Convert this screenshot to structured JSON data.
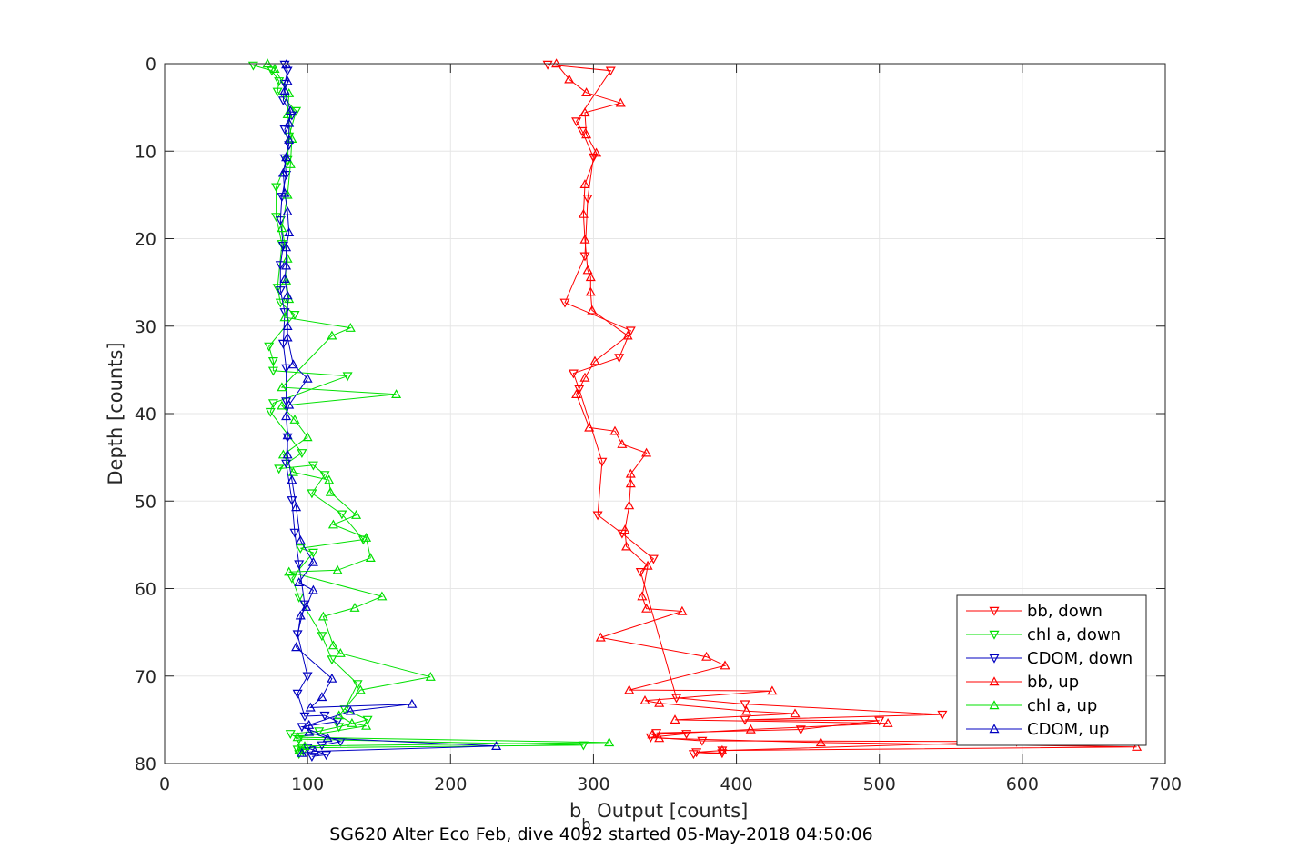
{
  "chart_data": {
    "type": "line",
    "xlabel_main": "b",
    "xlabel_sub": "b",
    "xlabel_rest": " Output [counts]",
    "ylabel": "Depth [counts]",
    "caption": "SG620 Alter Eco Feb, dive 4092 started 05-May-2018 04:50:06",
    "xlim": [
      0,
      700
    ],
    "ylim": [
      0,
      80
    ],
    "y_reversed": true,
    "x_ticks": [
      "0",
      "100",
      "200",
      "300",
      "400",
      "500",
      "600",
      "700"
    ],
    "y_ticks": [
      "0",
      "10",
      "20",
      "30",
      "40",
      "50",
      "60",
      "70",
      "80"
    ],
    "grid": true,
    "legend_position": "bottom-right",
    "series": [
      {
        "name": "bb, down",
        "color": "#ff0000",
        "marker": "triangle-down",
        "points": [
          [
            268,
            0.1
          ],
          [
            312,
            0.8
          ],
          [
            288,
            6.6
          ],
          [
            292,
            7.7
          ],
          [
            300,
            10.7
          ],
          [
            296,
            15.4
          ],
          [
            294,
            22.0
          ],
          [
            280,
            27.3
          ],
          [
            326,
            30.5
          ],
          [
            318,
            33.6
          ],
          [
            286,
            35.4
          ],
          [
            290,
            37.2
          ],
          [
            306,
            45.5
          ],
          [
            303,
            51.6
          ],
          [
            320,
            53.7
          ],
          [
            342,
            56.6
          ],
          [
            333,
            58.1
          ],
          [
            358,
            72.5
          ],
          [
            406,
            73.2
          ],
          [
            544,
            74.4
          ],
          [
            406,
            75.0
          ],
          [
            500,
            75.1
          ],
          [
            445,
            76.1
          ],
          [
            344,
            76.5
          ],
          [
            365,
            76.6
          ],
          [
            340,
            77.0
          ],
          [
            376,
            77.4
          ],
          [
            596,
            77.5
          ],
          [
            390,
            78.5
          ],
          [
            372,
            78.7
          ],
          [
            390,
            78.8
          ],
          [
            370,
            78.9
          ]
        ]
      },
      {
        "name": "chl a, down",
        "color": "#00e000",
        "marker": "triangle-down",
        "points": [
          [
            62,
            0.2
          ],
          [
            75,
            0.8
          ],
          [
            80,
            2.0
          ],
          [
            79,
            3.2
          ],
          [
            92,
            5.4
          ],
          [
            87,
            8.3
          ],
          [
            86,
            11.0
          ],
          [
            78,
            14.1
          ],
          [
            78,
            17.5
          ],
          [
            82,
            20.6
          ],
          [
            79,
            25.6
          ],
          [
            81,
            27.3
          ],
          [
            91,
            28.7
          ],
          [
            73,
            32.3
          ],
          [
            76,
            34.0
          ],
          [
            76,
            35.1
          ],
          [
            128,
            35.7
          ],
          [
            76,
            38.8
          ],
          [
            74,
            39.8
          ],
          [
            96,
            44.5
          ],
          [
            80,
            46.3
          ],
          [
            104,
            45.9
          ],
          [
            112,
            47.0
          ],
          [
            103,
            49.1
          ],
          [
            124,
            51.5
          ],
          [
            139,
            54.4
          ],
          [
            95,
            55.4
          ],
          [
            104,
            55.9
          ],
          [
            89,
            58.8
          ],
          [
            94,
            61.0
          ],
          [
            110,
            65.4
          ],
          [
            117,
            68.1
          ],
          [
            135,
            70.9
          ],
          [
            126,
            73.8
          ],
          [
            142,
            75.0
          ],
          [
            122,
            75.8
          ],
          [
            108,
            76.3
          ],
          [
            88,
            76.6
          ],
          [
            94,
            77.2
          ],
          [
            293,
            77.9
          ],
          [
            96,
            78.2
          ],
          [
            93,
            78.4
          ],
          [
            97,
            78.6
          ],
          [
            94,
            78.9
          ]
        ]
      },
      {
        "name": "CDOM, down",
        "color": "#0000c0",
        "marker": "triangle-down",
        "points": [
          [
            84,
            0.1
          ],
          [
            86,
            0.8
          ],
          [
            84,
            2.3
          ],
          [
            83,
            4.2
          ],
          [
            89,
            5.9
          ],
          [
            84,
            7.5
          ],
          [
            87,
            9.3
          ],
          [
            84,
            10.8
          ],
          [
            85,
            12.7
          ],
          [
            82,
            15.2
          ],
          [
            81,
            17.9
          ],
          [
            83,
            20.8
          ],
          [
            81,
            23.0
          ],
          [
            81,
            25.9
          ],
          [
            84,
            28.4
          ],
          [
            83,
            32.0
          ],
          [
            85,
            34.8
          ],
          [
            85,
            38.6
          ],
          [
            86,
            42.7
          ],
          [
            85,
            45.7
          ],
          [
            89,
            49.9
          ],
          [
            91,
            53.6
          ],
          [
            94,
            57.2
          ],
          [
            98,
            61.8
          ],
          [
            93,
            65.2
          ],
          [
            100,
            70.0
          ],
          [
            93,
            72.0
          ],
          [
            98,
            74.6
          ],
          [
            112,
            74.5
          ],
          [
            121,
            75.2
          ],
          [
            96,
            75.8
          ],
          [
            123,
            77.5
          ],
          [
            110,
            77.9
          ],
          [
            100,
            78.2
          ],
          [
            113,
            79.0
          ],
          [
            103,
            79.2
          ]
        ]
      },
      {
        "name": "bb, up",
        "color": "#ff0000",
        "marker": "triangle-up",
        "points": [
          [
            274,
            0.0
          ],
          [
            283,
            1.8
          ],
          [
            295,
            3.3
          ],
          [
            319,
            4.5
          ],
          [
            294,
            5.6
          ],
          [
            295,
            8.1
          ],
          [
            302,
            10.2
          ],
          [
            294,
            13.8
          ],
          [
            293,
            17.2
          ],
          [
            294,
            20.1
          ],
          [
            296,
            23.6
          ],
          [
            298,
            24.4
          ],
          [
            298,
            26.1
          ],
          [
            299,
            28.2
          ],
          [
            324,
            31.1
          ],
          [
            301,
            34.0
          ],
          [
            294,
            35.9
          ],
          [
            288,
            37.8
          ],
          [
            297,
            41.6
          ],
          [
            315,
            42.0
          ],
          [
            320,
            43.5
          ],
          [
            337,
            44.5
          ],
          [
            326,
            46.9
          ],
          [
            326,
            48.0
          ],
          [
            325,
            50.5
          ],
          [
            322,
            53.3
          ],
          [
            323,
            55.2
          ],
          [
            338,
            57.4
          ],
          [
            334,
            60.9
          ],
          [
            337,
            62.3
          ],
          [
            362,
            62.6
          ],
          [
            305,
            65.6
          ],
          [
            379,
            67.8
          ],
          [
            392,
            68.8
          ],
          [
            325,
            71.6
          ],
          [
            425,
            71.7
          ],
          [
            336,
            72.8
          ],
          [
            346,
            73.1
          ],
          [
            407,
            74.0
          ],
          [
            441,
            74.3
          ],
          [
            357,
            75.0
          ],
          [
            506,
            75.4
          ],
          [
            410,
            76.1
          ],
          [
            341,
            76.7
          ],
          [
            346,
            77.1
          ],
          [
            459,
            77.6
          ],
          [
            680,
            78.1
          ],
          [
            390,
            78.5
          ]
        ]
      },
      {
        "name": "chl a, up",
        "color": "#00e000",
        "marker": "triangle-up",
        "points": [
          [
            72,
            0.0
          ],
          [
            77,
            0.6
          ],
          [
            87,
            3.4
          ],
          [
            86,
            5.8
          ],
          [
            89,
            8.6
          ],
          [
            88,
            11.5
          ],
          [
            86,
            15.0
          ],
          [
            82,
            18.8
          ],
          [
            86,
            22.3
          ],
          [
            85,
            24.8
          ],
          [
            87,
            26.9
          ],
          [
            84,
            29.0
          ],
          [
            130,
            30.2
          ],
          [
            117,
            31.1
          ],
          [
            82,
            37.0
          ],
          [
            162,
            37.8
          ],
          [
            82,
            39.1
          ],
          [
            91,
            40.7
          ],
          [
            100,
            42.7
          ],
          [
            83,
            44.7
          ],
          [
            90,
            46.7
          ],
          [
            115,
            47.6
          ],
          [
            116,
            49.0
          ],
          [
            134,
            51.6
          ],
          [
            118,
            52.7
          ],
          [
            141,
            54.2
          ],
          [
            144,
            56.5
          ],
          [
            121,
            57.9
          ],
          [
            87,
            58.1
          ],
          [
            152,
            60.9
          ],
          [
            133,
            62.2
          ],
          [
            111,
            63.2
          ],
          [
            118,
            66.5
          ],
          [
            123,
            67.4
          ],
          [
            186,
            70.1
          ],
          [
            137,
            71.6
          ],
          [
            122,
            74.5
          ],
          [
            131,
            75.4
          ],
          [
            141,
            75.7
          ],
          [
            93,
            77.0
          ],
          [
            311,
            77.6
          ],
          [
            98,
            78.0
          ],
          [
            94,
            78.5
          ]
        ]
      },
      {
        "name": "CDOM, up",
        "color": "#0000c0",
        "marker": "triangle-up",
        "points": [
          [
            85,
            0.1
          ],
          [
            86,
            2.0
          ],
          [
            84,
            3.1
          ],
          [
            88,
            5.4
          ],
          [
            87,
            6.8
          ],
          [
            87,
            8.7
          ],
          [
            85,
            10.7
          ],
          [
            83,
            12.5
          ],
          [
            84,
            14.8
          ],
          [
            86,
            16.9
          ],
          [
            87,
            19.3
          ],
          [
            85,
            21.0
          ],
          [
            85,
            23.1
          ],
          [
            84,
            24.6
          ],
          [
            86,
            26.5
          ],
          [
            86,
            30.0
          ],
          [
            86,
            31.3
          ],
          [
            90,
            34.4
          ],
          [
            100,
            36.0
          ],
          [
            87,
            39.0
          ],
          [
            85,
            40.3
          ],
          [
            86,
            42.5
          ],
          [
            86,
            44.7
          ],
          [
            89,
            47.6
          ],
          [
            92,
            50.7
          ],
          [
            95,
            54.5
          ],
          [
            104,
            57.0
          ],
          [
            94,
            59.3
          ],
          [
            104,
            60.2
          ],
          [
            99,
            62.1
          ],
          [
            95,
            63.1
          ],
          [
            92,
            66.7
          ],
          [
            117,
            70.3
          ],
          [
            110,
            72.4
          ],
          [
            102,
            73.6
          ],
          [
            173,
            73.2
          ],
          [
            130,
            74.0
          ],
          [
            101,
            75.6
          ],
          [
            101,
            76.4
          ],
          [
            114,
            77.1
          ],
          [
            232,
            78.0
          ],
          [
            105,
            78.6
          ],
          [
            96,
            78.8
          ]
        ]
      }
    ]
  }
}
